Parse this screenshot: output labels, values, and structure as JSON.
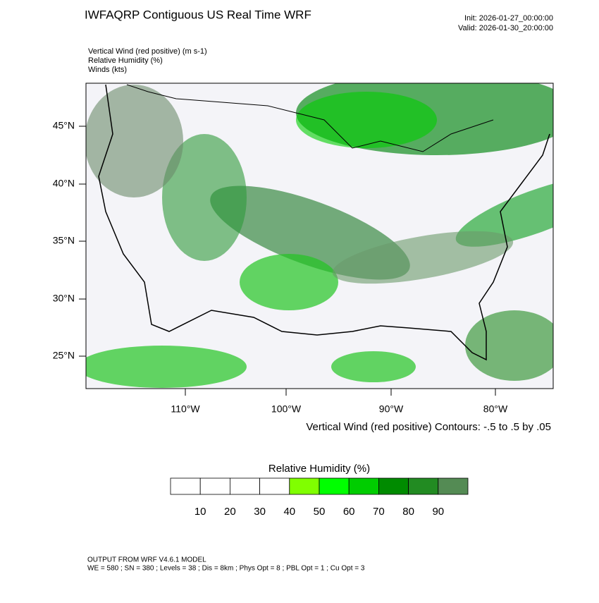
{
  "header": {
    "title": "IWFAQRP Contiguous US Real Time WRF",
    "init": "Init: 2026-01-27_00:00:00",
    "valid": "Valid: 2026-01-30_20:00:00"
  },
  "fields": [
    "Vertical Wind (red positive)   (m s-1)",
    "Relative Humidity   (%)",
    "Winds   (kts)"
  ],
  "map": {
    "lat_labels": [
      "45°N",
      "40°N",
      "35°N",
      "30°N",
      "25°N"
    ],
    "lon_labels": [
      "110°W",
      "100°W",
      "90°W",
      "80°W"
    ]
  },
  "contour_note": "Vertical Wind (red positive) Contours: -.5 to .5 by .05",
  "colorbar": {
    "title": "Relative Humidity  (%)",
    "colors": [
      "#ffffff",
      "#ffffff",
      "#ffffff",
      "#ffffff",
      "#80ff00",
      "#00ff00",
      "#00cd00",
      "#008b00",
      "#228b22",
      "#548b54"
    ],
    "labels": [
      "10",
      "20",
      "30",
      "40",
      "50",
      "60",
      "70",
      "80",
      "90"
    ]
  },
  "footer": {
    "line1": "OUTPUT FROM WRF V4.6.1 MODEL",
    "line2": "WE = 580 ; SN = 380 ; Levels = 38 ; Dis = 8km ; Phys Opt = 8 ; PBL Opt = 1 ; Cu Opt = 3"
  }
}
